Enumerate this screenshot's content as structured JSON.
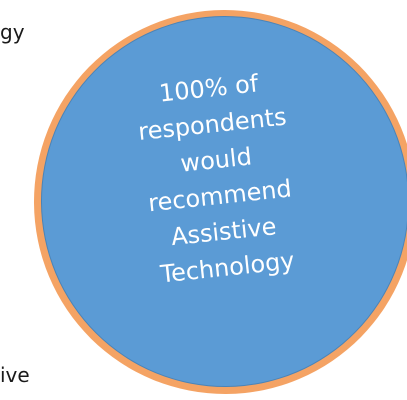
{
  "left_fragments": {
    "line1": "",
    "line2": "gy",
    "line3": "ive"
  },
  "circle": {
    "lines": [
      "100% of",
      "respondents",
      "would",
      "recommend",
      "Assistive",
      "Technology"
    ],
    "fill_color": "#5b9bd5",
    "glow_color": "#f49e5c",
    "text_color": "#ffffff"
  }
}
